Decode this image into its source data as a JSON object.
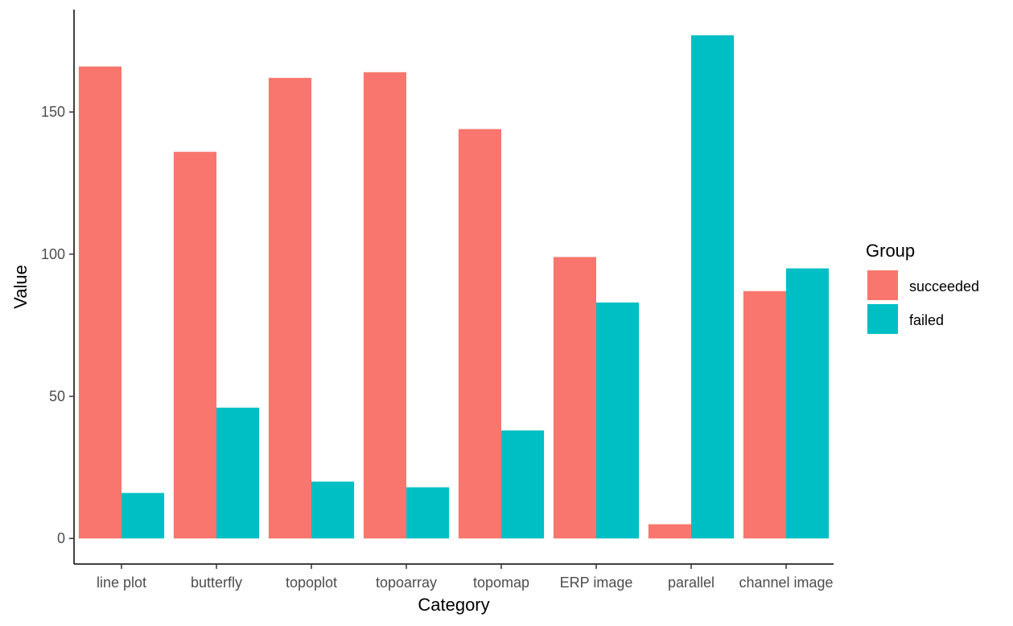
{
  "chart_data": {
    "type": "bar",
    "categories": [
      "line plot",
      "butterfly",
      "topoplot",
      "topoarray",
      "topomap",
      "ERP image",
      "parallel",
      "channel image"
    ],
    "series": [
      {
        "name": "succeeded",
        "color": "#F8766D",
        "values": [
          166,
          136,
          162,
          164,
          144,
          99,
          5,
          87
        ]
      },
      {
        "name": "failed",
        "color": "#00BFC4",
        "values": [
          16,
          46,
          20,
          18,
          38,
          83,
          177,
          95
        ]
      }
    ],
    "xlabel": "Category",
    "ylabel": "Value",
    "yticks": [
      0,
      50,
      100,
      150
    ],
    "ylim": [
      -9,
      186
    ],
    "legend": {
      "title": "Group",
      "position": "right"
    },
    "grid": false
  }
}
